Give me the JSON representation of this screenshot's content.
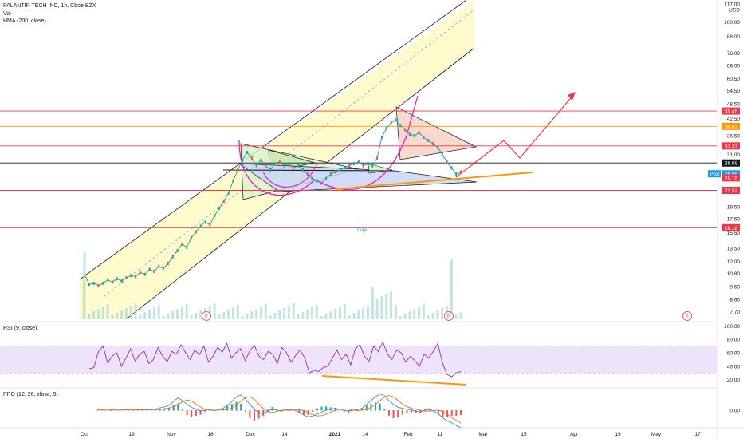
{
  "chart_data": [
    {
      "type": "line",
      "panel": "price",
      "legend": {
        "symbol_line": "PALANTIR TECH INC, 1h, Cboe BZX",
        "vol_label": "Vol",
        "hma_label": "HMA (200, close)"
      },
      "scale": "log",
      "ylim": [
        7.3,
        118
      ],
      "y_ticks": [
        "117.00\nUSD",
        "100.00",
        "88.00",
        "76.00",
        "68.00",
        "60.50",
        "54.50",
        "48.50",
        "42.50",
        "36.50",
        "31.00",
        "28.69",
        "25.15",
        "19.50",
        "17.50",
        "15.50",
        "13.50",
        "12.00",
        "10.80",
        "9.60",
        "8.60",
        "7.70"
      ],
      "y_tick_values": [
        117,
        100,
        88,
        76,
        68,
        60.5,
        54.5,
        48.5,
        42.5,
        36.5,
        31,
        28.69,
        25.15,
        19.5,
        17.5,
        15.5,
        13.5,
        12,
        10.8,
        9.6,
        8.6,
        7.7
      ],
      "price_labels": [
        {
          "value": 45.45,
          "text": "45.45",
          "color": "#f23645"
        },
        {
          "value": 39.67,
          "text": "39.67",
          "color": "#ff9800"
        },
        {
          "value": 33.37,
          "text": "33.37",
          "color": "#f23645"
        },
        {
          "value": 28.69,
          "text": "28.69",
          "color": "#131722"
        },
        {
          "value": 26.08,
          "text": "26.08",
          "color": "#2196f3",
          "tag": "Post"
        },
        {
          "value": 25.15,
          "text": "25.15",
          "color": "#f23645"
        },
        {
          "value": 22.52,
          "text": "22.52",
          "color": "#f23645"
        },
        {
          "value": 16.18,
          "text": "16.18",
          "color": "#f23645"
        }
      ],
      "tag_post": "Post",
      "gap_label": "Gap",
      "earnings_label": "E",
      "horizontal_levels": [
        {
          "value": 45.45,
          "color": "#f23645"
        },
        {
          "value": 39.67,
          "color": "#ff9800"
        },
        {
          "value": 33.37,
          "color": "#f23645"
        },
        {
          "value": 28.69,
          "color": "#131722"
        },
        {
          "value": 22.52,
          "color": "#f23645"
        },
        {
          "value": 16.18,
          "color": "#f23645"
        }
      ],
      "series": [
        {
          "values": [
            10.8,
            9.8,
            9.9,
            9.7,
            9.9,
            10.2,
            10.0,
            10.3,
            10.1,
            10.4,
            10.6,
            10.5,
            10.9,
            10.7,
            11.2,
            11.0,
            11.5,
            11.3,
            11.8,
            12.5,
            13.2,
            14.0,
            13.6,
            14.8,
            15.6,
            16.4,
            17.0,
            16.6,
            18.0,
            19.2,
            20.5,
            22.0,
            24.5,
            27.0,
            29.5,
            31.5,
            30.0,
            28.0,
            29.5,
            28.0,
            27.0,
            28.5,
            29.0,
            28.0,
            28.5,
            27.5,
            28.0,
            27.0,
            26.0,
            25.0,
            24.5,
            24.0,
            25.0,
            26.0,
            26.5,
            27.0,
            27.5,
            28.0,
            28.5,
            29.0,
            28.0,
            28.5,
            28.0,
            30.0,
            36.0,
            39.0,
            41.0,
            42.0,
            40.0,
            38.5,
            37.0,
            36.5,
            37.5,
            36.0,
            35.0,
            34.0,
            33.0,
            31.0,
            29.0,
            27.5,
            26.0,
            26.5
          ]
        }
      ]
    },
    {
      "type": "line",
      "panel": "rsi",
      "legend": "RSI (9, close)",
      "ylim": [
        10,
        104
      ],
      "y_ticks": [
        "100.00",
        "80.00",
        "60.00",
        "40.00",
        "20.00"
      ],
      "y_tick_values": [
        100,
        80,
        60,
        40,
        20
      ],
      "band": [
        30,
        70
      ],
      "series": [
        {
          "values": [
            36,
            38,
            62,
            70,
            45,
            55,
            60,
            40,
            52,
            66,
            48,
            58,
            62,
            44,
            50,
            68,
            55,
            47,
            62,
            58,
            72,
            60,
            50,
            64,
            57,
            70,
            46,
            55,
            68,
            61,
            74,
            52,
            60,
            66,
            48,
            63,
            71,
            55,
            50,
            62,
            58,
            44,
            68,
            60,
            46,
            56,
            64,
            52,
            30,
            34,
            32,
            38,
            40,
            52,
            64,
            50,
            58,
            42,
            66,
            72,
            55,
            47,
            70,
            62,
            76,
            58,
            50,
            64,
            60,
            46,
            55,
            48,
            40,
            58,
            52,
            62,
            74,
            45,
            28,
            24,
            30,
            32
          ]
        }
      ]
    },
    {
      "type": "line",
      "panel": "ppo",
      "legend": "PPO (12, 26, close, 9)",
      "y_ticks": [
        "0.00"
      ],
      "y_tick_values": [
        0
      ],
      "series": [
        {
          "values": [
            0.05,
            0.06,
            0.0,
            0.02,
            0.03,
            0.01,
            0.04,
            0.05,
            0.02,
            0.06,
            0.03,
            0.05,
            0.08,
            0.12,
            0.25,
            0.35,
            0.5,
            0.9,
            1.3,
            1.0,
            0.6,
            0.3,
            0.1,
            -0.1,
            0.0,
            0.1,
            -0.05,
            0.05,
            0.2,
            0.5,
            0.9,
            1.4,
            1.6,
            1.2,
            0.6,
            0.1,
            -0.2,
            -0.4,
            -0.1,
            0.1,
            0.0,
            -0.1,
            0.05,
            0.1,
            0.0,
            -0.2,
            -0.5,
            -0.7,
            -0.6,
            -0.4,
            -0.2,
            0.0,
            0.1,
            0.2,
            0.1,
            0.0,
            -0.1,
            0.0,
            0.1,
            0.2,
            0.6,
            1.0,
            1.4,
            1.7,
            1.5,
            1.0,
            0.6,
            0.3,
            0.2,
            0.1,
            0.0,
            -0.1,
            -0.2,
            0.0,
            0.1,
            -0.1,
            -0.4,
            -0.8,
            -1.1,
            -1.3,
            -1.6,
            -1.8
          ]
        }
      ]
    }
  ],
  "x_axis": {
    "ticks": [
      "Oct",
      "19",
      "Nov",
      "16",
      "Dec",
      "14",
      "2021",
      "14",
      "Feb",
      "11",
      "Mar",
      "15",
      "Apr",
      "19",
      "May",
      "17"
    ]
  },
  "colors": {
    "level_red": "#f23645",
    "level_orange": "#ff9800",
    "channel_fill": "#fffbcc",
    "triangle_green": "#d9f2c9",
    "triangle_blue": "#c9d6f7",
    "triangle_peach": "#f8d5c8",
    "rsi_band": "#ede4fc",
    "rsi_line": "#9c27b0",
    "arrow_red": "#f23645",
    "arc_magenta": "#e91ec8",
    "orange_trend": "#ff9800",
    "volume": "#b2dfdb"
  }
}
